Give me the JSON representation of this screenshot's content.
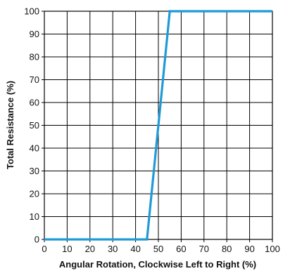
{
  "chart_data": {
    "type": "line",
    "title": "",
    "xlabel": "Angular Rotation, Clockwise Left to Right (%)",
    "ylabel": "Total Resistance (%)",
    "xlim": [
      0,
      100
    ],
    "ylim": [
      0,
      100
    ],
    "xticks": [
      0,
      10,
      20,
      30,
      40,
      50,
      60,
      70,
      80,
      90,
      100
    ],
    "yticks": [
      0,
      10,
      20,
      30,
      40,
      50,
      60,
      70,
      80,
      90,
      100
    ],
    "grid": true,
    "series": [
      {
        "x": [
          0,
          45,
          55,
          100
        ],
        "y": [
          0,
          0,
          100,
          100
        ],
        "color": "#1f9ad6"
      }
    ]
  }
}
